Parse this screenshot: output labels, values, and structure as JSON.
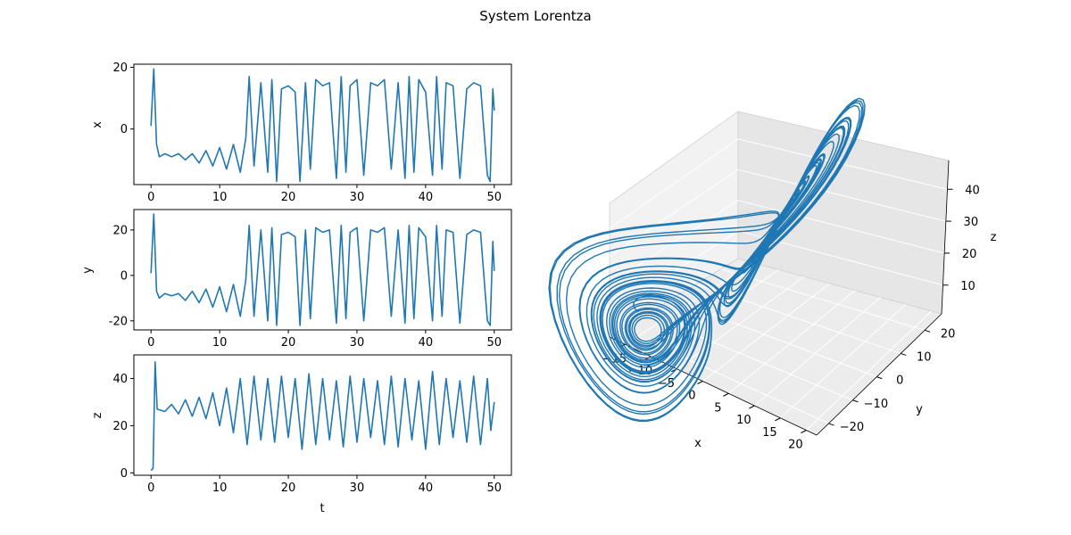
{
  "suptitle": "System Lorentza",
  "chart_data": [
    {
      "type": "line",
      "title": "",
      "xlabel": "",
      "ylabel": "x",
      "xlim": [
        -2.5,
        52.5
      ],
      "ylim": [
        -18,
        21
      ],
      "xticks": [
        0,
        10,
        20,
        30,
        40,
        50
      ],
      "yticks": [
        0,
        20
      ],
      "grid": false,
      "color": "#1f77b4",
      "series": [
        {
          "x": [
            0,
            0.4,
            0.8,
            1.2,
            2,
            3,
            4,
            5,
            6,
            7,
            8,
            9,
            10,
            11,
            12,
            13,
            13.8,
            14.3,
            15,
            16,
            17,
            17.6,
            18.3,
            19,
            20,
            21,
            21.7,
            22.5,
            23.2,
            24,
            25,
            26,
            27,
            27.7,
            28.4,
            29,
            30,
            31,
            32,
            33,
            34,
            35,
            36,
            37,
            37.6,
            38.3,
            39,
            40,
            41,
            41.6,
            42.4,
            43,
            44,
            45,
            46,
            47,
            48,
            49,
            49.4,
            49.8,
            50
          ],
          "y": [
            1,
            19.5,
            -5,
            -9,
            -8,
            -9,
            -8,
            -10,
            -8,
            -11,
            -7,
            -12,
            -6,
            -13,
            -5,
            -14,
            -3,
            17,
            -12,
            15,
            -14,
            16,
            -17,
            13,
            14,
            12,
            -17,
            15,
            -13,
            16,
            14,
            15,
            -16,
            17,
            -14,
            14,
            16,
            -15,
            15,
            14,
            16,
            -13,
            15,
            -16,
            17,
            -14,
            16,
            12,
            -15,
            17,
            -13,
            15,
            14,
            -16,
            13,
            15,
            14,
            -15,
            -17,
            13,
            6
          ]
        }
      ]
    },
    {
      "type": "line",
      "title": "",
      "xlabel": "",
      "ylabel": "y",
      "xlim": [
        -2.5,
        52.5
      ],
      "ylim": [
        -24,
        29
      ],
      "xticks": [
        0,
        10,
        20,
        30,
        40,
        50
      ],
      "yticks": [
        -20,
        0,
        20
      ],
      "grid": false,
      "color": "#1f77b4",
      "series": [
        {
          "x": [
            0,
            0.4,
            0.8,
            1.2,
            2,
            3,
            4,
            5,
            6,
            7,
            8,
            9,
            10,
            11,
            12,
            13,
            13.8,
            14.3,
            15,
            16,
            17,
            17.6,
            18.3,
            19,
            20,
            21,
            21.7,
            22.5,
            23.2,
            24,
            25,
            26,
            27,
            27.7,
            28.4,
            29,
            30,
            31,
            32,
            33,
            34,
            35,
            36,
            37,
            37.6,
            38.3,
            39,
            40,
            41,
            41.6,
            42.4,
            43,
            44,
            45,
            46,
            47,
            48,
            49,
            49.4,
            49.8,
            50
          ],
          "y": [
            1,
            27,
            -7,
            -10,
            -8,
            -9,
            -8,
            -11,
            -7,
            -12,
            -6,
            -14,
            -5,
            -16,
            -4,
            -18,
            -2,
            22,
            -18,
            20,
            -20,
            21,
            -22,
            18,
            19,
            17,
            -22,
            20,
            -19,
            21,
            19,
            20,
            -21,
            22,
            -19,
            19,
            21,
            -20,
            20,
            19,
            21,
            -18,
            20,
            -21,
            22,
            -19,
            21,
            17,
            -20,
            22,
            -18,
            20,
            19,
            -21,
            18,
            20,
            19,
            -20,
            -22,
            15,
            2
          ]
        }
      ]
    },
    {
      "type": "line",
      "title": "",
      "xlabel": "t",
      "ylabel": "z",
      "xlim": [
        -2.5,
        52.5
      ],
      "ylim": [
        -1,
        50
      ],
      "xticks": [
        0,
        10,
        20,
        30,
        40,
        50
      ],
      "yticks": [
        0,
        20,
        40
      ],
      "grid": false,
      "color": "#1f77b4",
      "series": [
        {
          "x": [
            0,
            0.3,
            0.6,
            0.9,
            2,
            3,
            4,
            5,
            6,
            7,
            8,
            9,
            10,
            11,
            12,
            13,
            14,
            15,
            16,
            17,
            18,
            19,
            20,
            21,
            22,
            23,
            24,
            25,
            26,
            27,
            28,
            29,
            30,
            31,
            32,
            33,
            34,
            35,
            36,
            37,
            38,
            39,
            40,
            41,
            42,
            43,
            44,
            45,
            46,
            47,
            48,
            49,
            49.5,
            50
          ],
          "y": [
            1,
            2,
            47,
            27,
            26,
            29,
            25,
            31,
            24,
            32,
            23,
            34,
            20,
            36,
            17,
            40,
            12,
            41,
            14,
            40,
            13,
            41,
            15,
            40,
            10,
            42,
            12,
            40,
            14,
            39,
            11,
            41,
            13,
            40,
            15,
            39,
            12,
            41,
            11,
            40,
            14,
            39,
            10,
            43,
            12,
            40,
            15,
            39,
            13,
            41,
            12,
            40,
            18,
            30
          ]
        }
      ]
    },
    {
      "type": "line3d",
      "title": "",
      "xlabel": "x",
      "ylabel": "y",
      "zlabel": "z",
      "xticks": [
        -15,
        -10,
        -5,
        0,
        5,
        10,
        15,
        20
      ],
      "yticks": [
        -20,
        -10,
        0,
        10,
        20
      ],
      "zticks": [
        10,
        20,
        30,
        40
      ],
      "grid": true,
      "color": "#1f77b4"
    }
  ]
}
